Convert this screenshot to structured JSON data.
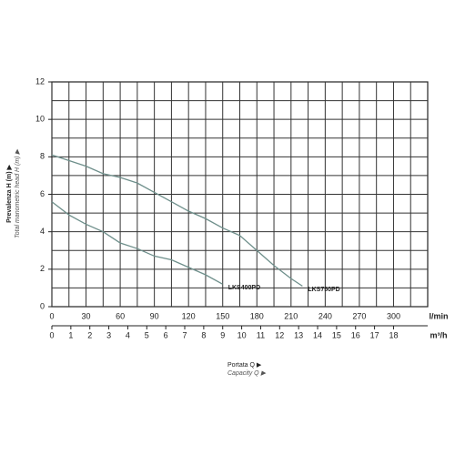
{
  "chart_data": {
    "type": "line",
    "x_axis_label": "Portata Q ▶",
    "x_axis_label_alt": "Capacity Q ▶",
    "y_axis_label": "Prevalenza H (m) ▶",
    "y_axis_label_alt": "Total manometric head H (m) ▶",
    "x_unit": "l/min",
    "x2_unit": "m³/h",
    "xlim": [
      0,
      330
    ],
    "xticks": [
      0,
      30,
      60,
      90,
      120,
      150,
      180,
      210,
      240,
      270,
      300
    ],
    "x2lim": [
      0,
      19.8
    ],
    "x2ticks": [
      0,
      1,
      2,
      3,
      4,
      5,
      6,
      7,
      8,
      9,
      10,
      11,
      12,
      13,
      14,
      15,
      16,
      17,
      18
    ],
    "ylim": [
      0,
      12
    ],
    "yticks": [
      0,
      2,
      4,
      6,
      8,
      10,
      12
    ],
    "grid": true,
    "series": [
      {
        "name": "LKS400PD",
        "color": "#6e8f8b",
        "x": [
          0,
          15,
          30,
          45,
          60,
          75,
          90,
          105,
          120,
          135,
          150
        ],
        "values": [
          5.6,
          4.9,
          4.4,
          4.0,
          3.4,
          3.1,
          2.7,
          2.5,
          2.1,
          1.7,
          1.2
        ]
      },
      {
        "name": "LKS750PD",
        "color": "#6e8f8b",
        "x": [
          0,
          30,
          45,
          60,
          75,
          90,
          105,
          120,
          135,
          150,
          165,
          180,
          195,
          210,
          220
        ],
        "values": [
          8.1,
          7.5,
          7.1,
          6.9,
          6.6,
          6.1,
          5.6,
          5.1,
          4.7,
          4.2,
          3.8,
          3.0,
          2.2,
          1.5,
          1.1
        ]
      }
    ]
  }
}
